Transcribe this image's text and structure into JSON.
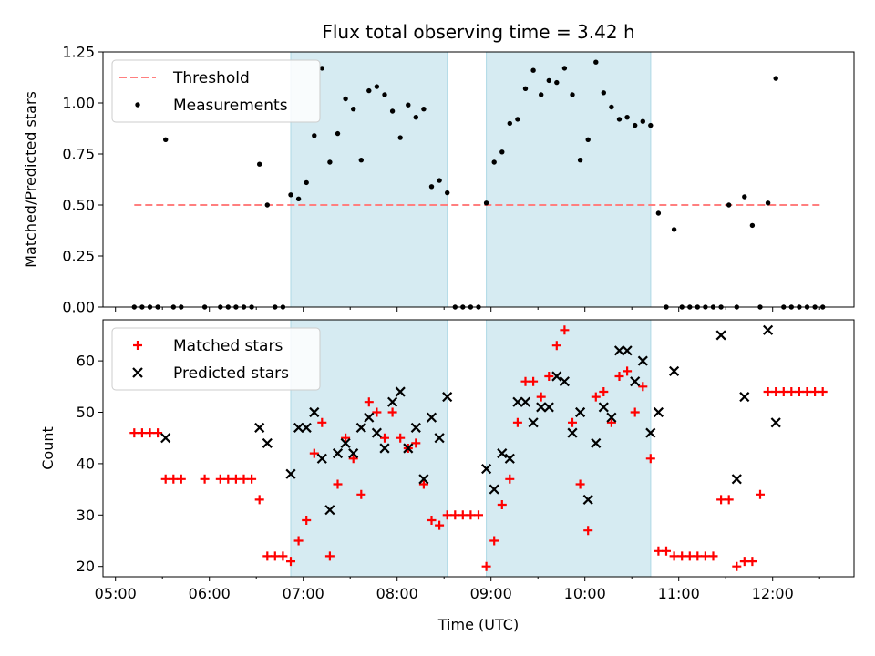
{
  "chart_data": [
    {
      "type": "scatter",
      "title": "Flux total observing time = 3.42 h",
      "xlabel": "",
      "ylabel": "Matched/Predicted stars",
      "xlim": [
        "04:52",
        "12:52"
      ],
      "ylim": [
        0,
        1.25
      ],
      "yticks": [
        "0.00",
        "0.25",
        "0.50",
        "0.75",
        "1.00",
        "1.25"
      ],
      "shaded_intervals": [
        [
          "06:52",
          "08:32"
        ],
        [
          "08:57",
          "10:42"
        ]
      ],
      "shade_color": "#add8e6",
      "legend_position": "upper left",
      "series": [
        {
          "name": "Threshold",
          "kind": "dashed-line",
          "color": "#ff7f7f",
          "points": [
            [
              "05:12",
              0.5
            ],
            [
              "12:32",
              0.5
            ]
          ]
        },
        {
          "name": "Measurements",
          "kind": "dots",
          "color": "#000000",
          "points": [
            [
              "05:12",
              0
            ],
            [
              "05:17",
              0
            ],
            [
              "05:22",
              0
            ],
            [
              "05:27",
              0
            ],
            [
              "05:32",
              0.82
            ],
            [
              "05:37",
              0
            ],
            [
              "05:42",
              0
            ],
            [
              "05:57",
              0
            ],
            [
              "06:07",
              0
            ],
            [
              "06:12",
              0
            ],
            [
              "06:17",
              0
            ],
            [
              "06:22",
              0
            ],
            [
              "06:27",
              0
            ],
            [
              "06:32",
              0.7
            ],
            [
              "06:37",
              0.5
            ],
            [
              "06:42",
              0
            ],
            [
              "06:47",
              0
            ],
            [
              "06:52",
              0.55
            ],
            [
              "06:57",
              0.53
            ],
            [
              "07:02",
              0.61
            ],
            [
              "07:07",
              0.84
            ],
            [
              "07:12",
              1.17
            ],
            [
              "07:17",
              0.71
            ],
            [
              "07:22",
              0.85
            ],
            [
              "07:27",
              1.02
            ],
            [
              "07:32",
              0.97
            ],
            [
              "07:37",
              0.72
            ],
            [
              "07:42",
              1.06
            ],
            [
              "07:47",
              1.08
            ],
            [
              "07:52",
              1.04
            ],
            [
              "07:57",
              0.96
            ],
            [
              "08:02",
              0.83
            ],
            [
              "08:07",
              0.99
            ],
            [
              "08:12",
              0.93
            ],
            [
              "08:17",
              0.97
            ],
            [
              "08:22",
              0.59
            ],
            [
              "08:27",
              0.62
            ],
            [
              "08:32",
              0.56
            ],
            [
              "08:37",
              0
            ],
            [
              "08:42",
              0
            ],
            [
              "08:47",
              0
            ],
            [
              "08:52",
              0
            ],
            [
              "08:57",
              0.51
            ],
            [
              "09:02",
              0.71
            ],
            [
              "09:07",
              0.76
            ],
            [
              "09:12",
              0.9
            ],
            [
              "09:17",
              0.92
            ],
            [
              "09:22",
              1.07
            ],
            [
              "09:27",
              1.16
            ],
            [
              "09:32",
              1.04
            ],
            [
              "09:37",
              1.11
            ],
            [
              "09:42",
              1.1
            ],
            [
              "09:47",
              1.17
            ],
            [
              "09:52",
              1.04
            ],
            [
              "09:57",
              0.72
            ],
            [
              "10:02",
              0.82
            ],
            [
              "10:07",
              1.2
            ],
            [
              "10:12",
              1.05
            ],
            [
              "10:17",
              0.98
            ],
            [
              "10:22",
              0.92
            ],
            [
              "10:27",
              0.93
            ],
            [
              "10:32",
              0.89
            ],
            [
              "10:37",
              0.91
            ],
            [
              "10:42",
              0.89
            ],
            [
              "10:47",
              0.46
            ],
            [
              "10:52",
              0
            ],
            [
              "10:57",
              0.38
            ],
            [
              "11:02",
              0
            ],
            [
              "11:07",
              0
            ],
            [
              "11:12",
              0
            ],
            [
              "11:17",
              0
            ],
            [
              "11:22",
              0
            ],
            [
              "11:27",
              0
            ],
            [
              "11:32",
              0.5
            ],
            [
              "11:37",
              0
            ],
            [
              "11:42",
              0.54
            ],
            [
              "11:47",
              0.4
            ],
            [
              "11:52",
              0
            ],
            [
              "11:57",
              0.51
            ],
            [
              "12:02",
              1.12
            ],
            [
              "12:07",
              0
            ],
            [
              "12:12",
              0
            ],
            [
              "12:17",
              0
            ],
            [
              "12:22",
              0
            ],
            [
              "12:27",
              0
            ],
            [
              "12:32",
              0
            ]
          ]
        }
      ]
    },
    {
      "type": "scatter",
      "title": "",
      "xlabel": "Time (UTC)",
      "ylabel": "Count",
      "xlim": [
        "04:52",
        "12:52"
      ],
      "ylim": [
        18,
        68
      ],
      "xticks": [
        "05:00",
        "06:00",
        "07:00",
        "08:00",
        "09:00",
        "10:00",
        "11:00",
        "12:00"
      ],
      "yticks": [
        "20",
        "30",
        "40",
        "50",
        "60"
      ],
      "shaded_intervals": [
        [
          "06:52",
          "08:32"
        ],
        [
          "08:57",
          "10:42"
        ]
      ],
      "shade_color": "#add8e6",
      "legend_position": "upper left",
      "series": [
        {
          "name": "Matched stars",
          "kind": "plus",
          "color": "#ff0000",
          "points": [
            [
              "05:12",
              46
            ],
            [
              "05:17",
              46
            ],
            [
              "05:22",
              46
            ],
            [
              "05:27",
              46
            ],
            [
              "05:32",
              37
            ],
            [
              "05:37",
              37
            ],
            [
              "05:42",
              37
            ],
            [
              "05:57",
              37
            ],
            [
              "06:07",
              37
            ],
            [
              "06:12",
              37
            ],
            [
              "06:17",
              37
            ],
            [
              "06:22",
              37
            ],
            [
              "06:27",
              37
            ],
            [
              "06:32",
              33
            ],
            [
              "06:37",
              22
            ],
            [
              "06:42",
              22
            ],
            [
              "06:47",
              22
            ],
            [
              "06:52",
              21
            ],
            [
              "06:57",
              25
            ],
            [
              "07:02",
              29
            ],
            [
              "07:07",
              42
            ],
            [
              "07:12",
              48
            ],
            [
              "07:17",
              22
            ],
            [
              "07:22",
              36
            ],
            [
              "07:27",
              45
            ],
            [
              "07:32",
              41
            ],
            [
              "07:37",
              34
            ],
            [
              "07:42",
              52
            ],
            [
              "07:47",
              50
            ],
            [
              "07:52",
              45
            ],
            [
              "07:57",
              50
            ],
            [
              "08:02",
              45
            ],
            [
              "08:07",
              43
            ],
            [
              "08:12",
              44
            ],
            [
              "08:17",
              36
            ],
            [
              "08:22",
              29
            ],
            [
              "08:27",
              28
            ],
            [
              "08:32",
              30
            ],
            [
              "08:37",
              30
            ],
            [
              "08:42",
              30
            ],
            [
              "08:47",
              30
            ],
            [
              "08:52",
              30
            ],
            [
              "08:57",
              20
            ],
            [
              "09:02",
              25
            ],
            [
              "09:07",
              32
            ],
            [
              "09:12",
              37
            ],
            [
              "09:17",
              48
            ],
            [
              "09:22",
              56
            ],
            [
              "09:27",
              56
            ],
            [
              "09:32",
              53
            ],
            [
              "09:37",
              57
            ],
            [
              "09:42",
              63
            ],
            [
              "09:47",
              66
            ],
            [
              "09:52",
              48
            ],
            [
              "09:57",
              36
            ],
            [
              "10:02",
              27
            ],
            [
              "10:07",
              53
            ],
            [
              "10:12",
              54
            ],
            [
              "10:17",
              48
            ],
            [
              "10:22",
              57
            ],
            [
              "10:27",
              58
            ],
            [
              "10:32",
              50
            ],
            [
              "10:37",
              55
            ],
            [
              "10:42",
              41
            ],
            [
              "10:47",
              23
            ],
            [
              "10:52",
              23
            ],
            [
              "10:57",
              22
            ],
            [
              "11:02",
              22
            ],
            [
              "11:07",
              22
            ],
            [
              "11:12",
              22
            ],
            [
              "11:17",
              22
            ],
            [
              "11:22",
              22
            ],
            [
              "11:27",
              33
            ],
            [
              "11:32",
              33
            ],
            [
              "11:37",
              20
            ],
            [
              "11:42",
              21
            ],
            [
              "11:47",
              21
            ],
            [
              "11:52",
              34
            ],
            [
              "11:57",
              54
            ],
            [
              "12:02",
              54
            ],
            [
              "12:07",
              54
            ],
            [
              "12:12",
              54
            ],
            [
              "12:17",
              54
            ],
            [
              "12:22",
              54
            ],
            [
              "12:27",
              54
            ],
            [
              "12:32",
              54
            ]
          ]
        },
        {
          "name": "Predicted stars",
          "kind": "x",
          "color": "#000000",
          "points": [
            [
              "05:32",
              45
            ],
            [
              "06:32",
              47
            ],
            [
              "06:37",
              44
            ],
            [
              "06:52",
              38
            ],
            [
              "06:57",
              47
            ],
            [
              "07:02",
              47
            ],
            [
              "07:07",
              50
            ],
            [
              "07:12",
              41
            ],
            [
              "07:17",
              31
            ],
            [
              "07:22",
              42
            ],
            [
              "07:27",
              44
            ],
            [
              "07:32",
              42
            ],
            [
              "07:37",
              47
            ],
            [
              "07:42",
              49
            ],
            [
              "07:47",
              46
            ],
            [
              "07:52",
              43
            ],
            [
              "07:57",
              52
            ],
            [
              "08:02",
              54
            ],
            [
              "08:07",
              43
            ],
            [
              "08:12",
              47
            ],
            [
              "08:17",
              37
            ],
            [
              "08:22",
              49
            ],
            [
              "08:27",
              45
            ],
            [
              "08:32",
              53
            ],
            [
              "08:57",
              39
            ],
            [
              "09:02",
              35
            ],
            [
              "09:07",
              42
            ],
            [
              "09:12",
              41
            ],
            [
              "09:17",
              52
            ],
            [
              "09:22",
              52
            ],
            [
              "09:27",
              48
            ],
            [
              "09:32",
              51
            ],
            [
              "09:37",
              51
            ],
            [
              "09:42",
              57
            ],
            [
              "09:47",
              56
            ],
            [
              "09:52",
              46
            ],
            [
              "09:57",
              50
            ],
            [
              "10:02",
              33
            ],
            [
              "10:07",
              44
            ],
            [
              "10:12",
              51
            ],
            [
              "10:17",
              49
            ],
            [
              "10:22",
              62
            ],
            [
              "10:27",
              62
            ],
            [
              "10:32",
              56
            ],
            [
              "10:37",
              60
            ],
            [
              "10:42",
              46
            ],
            [
              "10:47",
              50
            ],
            [
              "10:57",
              58
            ],
            [
              "11:27",
              65
            ],
            [
              "11:37",
              37
            ],
            [
              "11:42",
              53
            ],
            [
              "11:57",
              66
            ],
            [
              "12:02",
              48
            ]
          ]
        }
      ]
    }
  ]
}
